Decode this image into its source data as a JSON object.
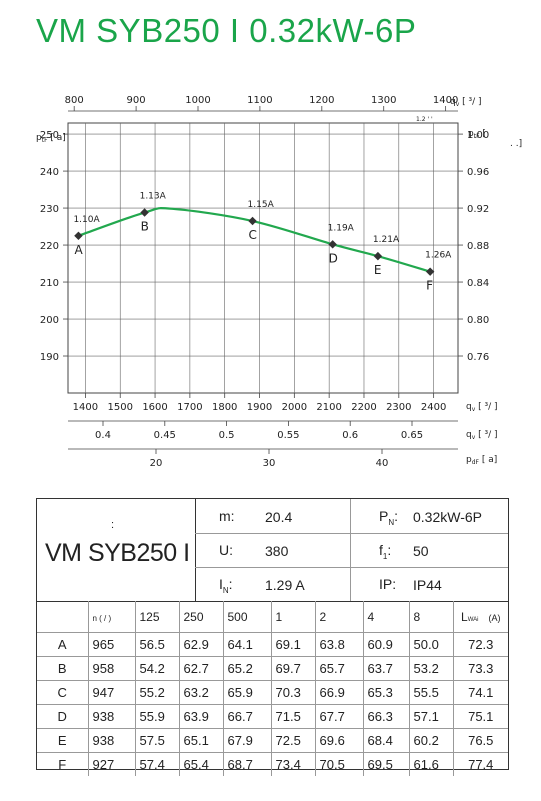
{
  "title": "VM SYB250 I 0.32kW-6P",
  "chart_data": {
    "type": "line",
    "x_flow_top": {
      "label": "q",
      "label_sub": "v",
      "ticks": [
        "800",
        "900",
        "1000",
        "1100",
        "1200",
        "1300",
        "1400"
      ],
      "ticks_v": [
        800,
        900,
        1000,
        1100,
        1200,
        1300,
        1400
      ],
      "xlim": [
        790,
        1420
      ],
      "mini_text": "1.2  ' '"
    },
    "x_flow_bottom": {
      "label": "q",
      "label_sub": "v",
      "ticks": [
        "1400",
        "1500",
        "1600",
        "1700",
        "1800",
        "1900",
        "2000",
        "2100",
        "2200",
        "2300",
        "2400"
      ],
      "ticks_v": [
        1400,
        1500,
        1600,
        1700,
        1800,
        1900,
        2000,
        2100,
        2200,
        2300,
        2400
      ],
      "xlim": [
        1350,
        2470
      ]
    },
    "x_flow_secondary": {
      "label": "q",
      "label_sub": "v",
      "ticks": [
        "0.4",
        "0.45",
        "0.5",
        "0.55",
        "0.6",
        "0.65"
      ],
      "ticks_v": [
        0.4,
        0.45,
        0.5,
        0.55,
        0.6,
        0.65
      ]
    },
    "x_dynamic_pressure": {
      "label": "p",
      "label_sub": "dF",
      "ticks": [
        "20",
        "30",
        "40"
      ],
      "ticks_v": [
        20,
        30,
        40
      ]
    },
    "y_left": {
      "label": "p",
      "label_sub": "tF",
      "unit_bracket": "[   a]",
      "ticks": [
        "190",
        "200",
        "210",
        "220",
        "230",
        "240",
        "250"
      ],
      "ticks_v": [
        190,
        200,
        210,
        220,
        230,
        240,
        250
      ],
      "ylim": [
        180,
        253
      ]
    },
    "y_right": {
      "label": "p",
      "label_sub": "tF",
      "ticks": [
        "0.76",
        "0.80",
        "0.84",
        "0.88",
        "0.92",
        "0.96",
        "1.00"
      ],
      "ticks_v": [
        0.76,
        0.8,
        0.84,
        0.88,
        0.92,
        0.96,
        1.0
      ]
    },
    "grid": true,
    "series": [
      {
        "color": "#22a84e",
        "x": [
          1380,
          1570,
          1650,
          1880,
          2110,
          2240,
          2390
        ],
        "y": [
          222.5,
          228.8,
          229.8,
          226.5,
          220.2,
          217.0,
          212.8
        ],
        "points": [
          {
            "label": "A",
            "current": "1.10A",
            "x": 1380,
            "y": 222.5
          },
          {
            "label": "B",
            "current": "1.13A",
            "x": 1570,
            "y": 228.8
          },
          {
            "label": "C",
            "current": "1.15A",
            "x": 1880,
            "y": 226.5
          },
          {
            "label": "D",
            "current": "1.19A",
            "x": 2110,
            "y": 220.2
          },
          {
            "label": "E",
            "current": "1.21A",
            "x": 2240,
            "y": 217.0
          },
          {
            "label": "F",
            "current": "1.26A",
            "x": 2390,
            "y": 212.8
          }
        ]
      }
    ]
  },
  "spec": {
    "colon": ":",
    "model": "VM SYB250 I",
    "m_label": "m:",
    "m_value": "20.4",
    "u_label": "U:",
    "u_value": "380",
    "in_label": "I",
    "in_sub": "N",
    "in_colon": ":",
    "in_value": "1.29 A",
    "pn_label": "P",
    "pn_sub": "N",
    "pn_colon": ":",
    "pn_value": "0.32kW-6P",
    "f_label": "f",
    "f_sub": "1",
    "f_colon": ":",
    "f_value": "50",
    "ip_label": "IP:",
    "ip_value": "IP44"
  },
  "table": {
    "header": [
      "",
      "n ( /  )",
      "125",
      "250",
      "500",
      "1",
      "2",
      "4",
      "8",
      "L",
      "(A)"
    ],
    "header_lwa_sub": "WAi",
    "rows": [
      [
        "A",
        "965",
        "56.5",
        "62.9",
        "64.1",
        "69.1",
        "63.8",
        "60.9",
        "50.0",
        "72.3"
      ],
      [
        "B",
        "958",
        "54.2",
        "62.7",
        "65.2",
        "69.7",
        "65.7",
        "63.7",
        "53.2",
        "73.3"
      ],
      [
        "C",
        "947",
        "55.2",
        "63.2",
        "65.9",
        "70.3",
        "66.9",
        "65.3",
        "55.5",
        "74.1"
      ],
      [
        "D",
        "938",
        "55.9",
        "63.9",
        "66.7",
        "71.5",
        "67.7",
        "66.3",
        "57.1",
        "75.1"
      ],
      [
        "E",
        "938",
        "57.5",
        "65.1",
        "67.9",
        "72.5",
        "69.6",
        "68.4",
        "60.2",
        "76.5"
      ],
      [
        "F",
        "927",
        "57.4",
        "65.4",
        "68.7",
        "73.4",
        "70.5",
        "69.5",
        "61.6",
        "77.4"
      ]
    ]
  }
}
